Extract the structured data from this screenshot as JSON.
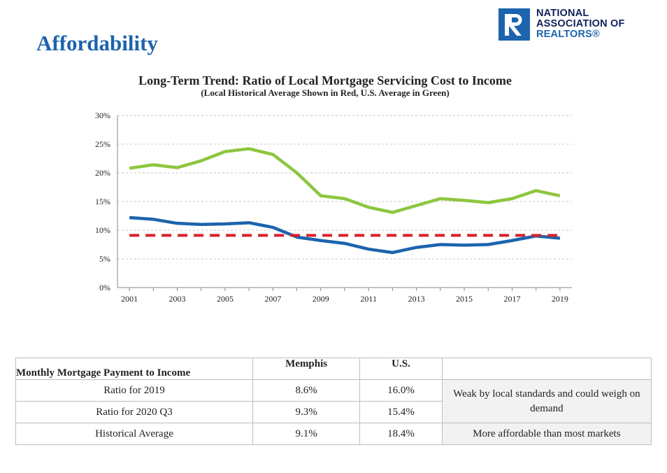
{
  "page": {
    "title": "Affordability",
    "logo": {
      "lines": [
        "NATIONAL",
        "ASSOCIATION OF",
        "REALTORS®"
      ],
      "mark": "R",
      "colors": {
        "box": "#1c64ad",
        "text": "#10215a"
      }
    }
  },
  "chart_data": {
    "type": "line",
    "title": "Long-Term Trend: Ratio of Local Mortgage Servicing Cost to Income",
    "subtitle": "(Local Historical Average Shown in Red, U.S. Average in Green)",
    "x": [
      2001,
      2002,
      2003,
      2004,
      2005,
      2006,
      2007,
      2008,
      2009,
      2010,
      2011,
      2012,
      2013,
      2014,
      2015,
      2016,
      2017,
      2018,
      2019
    ],
    "x_tick_labels": [
      "2001",
      "2003",
      "2005",
      "2007",
      "2009",
      "2011",
      "2013",
      "2015",
      "2017",
      "2019"
    ],
    "y_tick_labels": [
      "0%",
      "5%",
      "10%",
      "15%",
      "20%",
      "25%",
      "30%"
    ],
    "ylim": [
      0,
      30
    ],
    "grid": "horizontal dashed",
    "series": [
      {
        "color": "#8dc63f",
        "style": "solid",
        "values": [
          20.8,
          21.4,
          20.9,
          22.1,
          23.7,
          24.2,
          23.2,
          20.0,
          16.0,
          15.5,
          14.0,
          13.1,
          14.3,
          15.5,
          15.2,
          14.8,
          15.5,
          16.9,
          16.0
        ]
      },
      {
        "color": "#1c64ad",
        "style": "solid",
        "values": [
          12.2,
          11.9,
          11.2,
          11.0,
          11.1,
          11.3,
          10.5,
          8.8,
          8.2,
          7.7,
          6.7,
          6.1,
          7.0,
          7.5,
          7.4,
          7.5,
          8.2,
          9.0,
          8.6
        ]
      },
      {
        "color": "#d7212a",
        "style": "dashed",
        "values": [
          9.1,
          9.1,
          9.1,
          9.1,
          9.1,
          9.1,
          9.1,
          9.1,
          9.1,
          9.1,
          9.1,
          9.1,
          9.1,
          9.1,
          9.1,
          9.1,
          9.1,
          9.1,
          9.1
        ]
      }
    ]
  },
  "table": {
    "headers": [
      "Monthly Mortgage Payment to Income",
      "Memphis",
      "U.S.",
      ""
    ],
    "rows": [
      {
        "label": "Ratio for 2019",
        "memphis": "8.6%",
        "us": "16.0%"
      },
      {
        "label": "Ratio for 2020 Q3",
        "memphis": "9.3%",
        "us": "15.4%"
      },
      {
        "label": "Historical Average",
        "memphis": "9.1%",
        "us": "18.4%"
      }
    ],
    "notes": [
      "Weak by local standards and could weigh on demand",
      "More affordable than most markets"
    ]
  }
}
